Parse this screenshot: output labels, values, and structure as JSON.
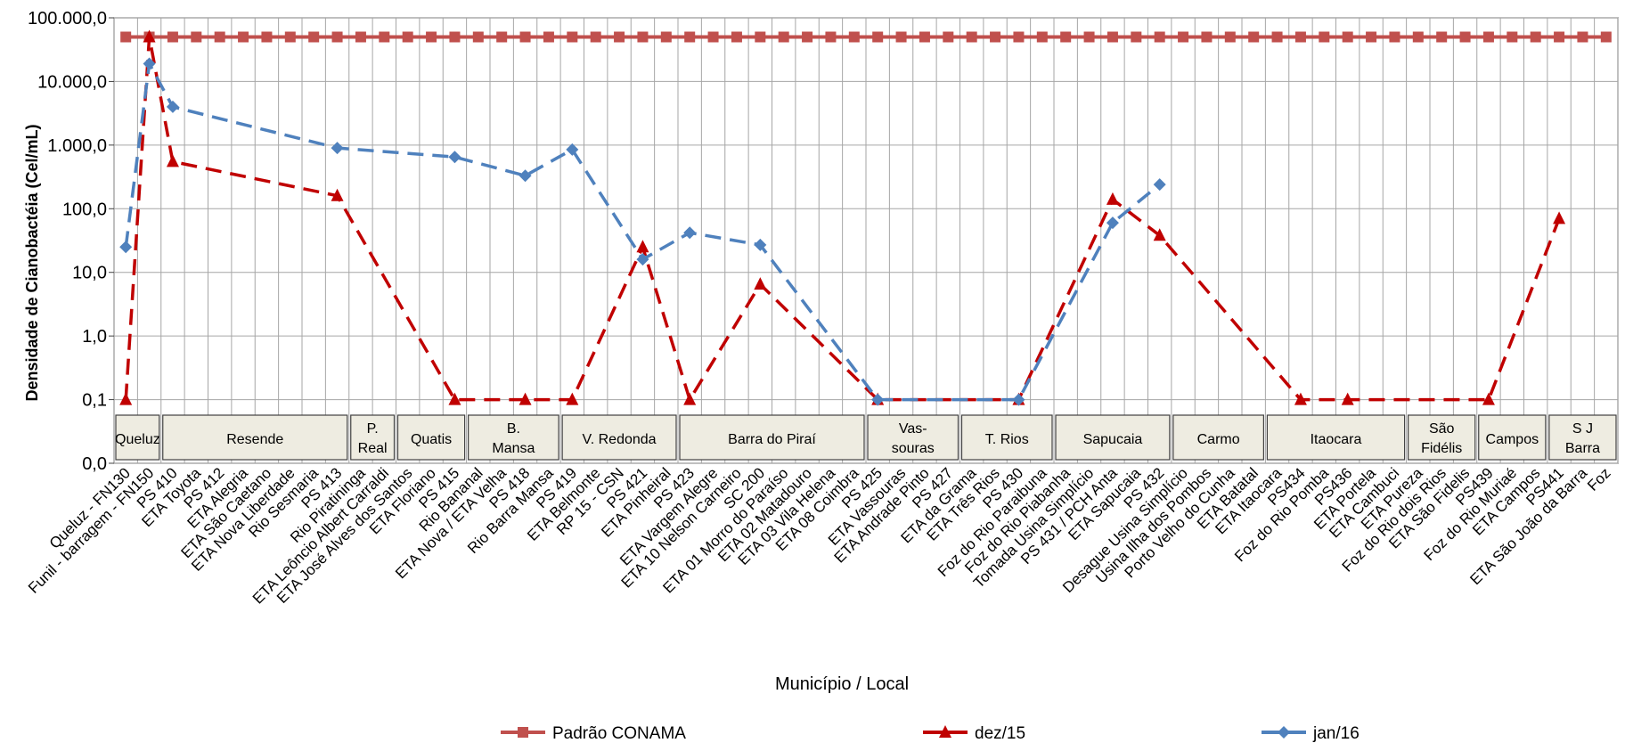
{
  "chart_data": {
    "type": "line",
    "title": "",
    "xlabel": "Município / Local",
    "ylabel": "Densidade de Cianobactéia (Cel/mL)",
    "yscale": "log",
    "ylim": [
      0.01,
      100000
    ],
    "grid": true,
    "legend_position": "bottom",
    "colors": {
      "conama": "#c0504d",
      "dez15": "#c00000",
      "jan16": "#4f81bd",
      "grid": "#a6a6a6",
      "band_fill": "#eeece1"
    },
    "y_ticks": [
      {
        "value": 0.01,
        "label": "0,0"
      },
      {
        "value": 0.1,
        "label": "0,1"
      },
      {
        "value": 1,
        "label": "1,0"
      },
      {
        "value": 10,
        "label": "10,0"
      },
      {
        "value": 100,
        "label": "100,0"
      },
      {
        "value": 1000,
        "label": "1.000,0"
      },
      {
        "value": 10000,
        "label": "10.000,0"
      },
      {
        "value": 100000,
        "label": "100.000,0"
      }
    ],
    "categories": [
      "Queluz - FN130",
      "Funil - barragem - FN150",
      "PS 410",
      "ETA Toyota",
      "PS 412",
      "ETA Alegria",
      "ETA São Caetano",
      "ETA Nova Liberdade",
      "Rio Sesmaria",
      "PS 413",
      "Rio Piratininga",
      "ETA Leôncio Albert Carraldi",
      "ETA José Alves dos Santos",
      "ETA Floriano",
      "PS 415",
      "Rio Bananal",
      "ETA Nova / ETA Velha",
      "PS 418",
      "Rio Barra Mansa",
      "PS 419",
      "ETA Belmonte",
      "RP 15 - CSN",
      "PS 421",
      "ETA Pinheiral",
      "PS 423",
      "ETA Vargem Alegre",
      "ETA 10 Nelson Carneiro",
      "SC 200",
      "ETA 01 Morro do Paraíso",
      "ETA 02 Matadouro",
      "ETA 03 Vila Helena",
      "ETA 08 Coimbra",
      "PS 425",
      "ETA Vassouras",
      "ETA Andrade Pinto",
      "PS 427",
      "ETA da Grama",
      "ETA Três Rios",
      "PS 430",
      "Foz do Rio Paraibuna",
      "Foz do Rio Piabanha",
      "Tomada Usina Simplício",
      "PS 431 / PCH Anta",
      "ETA Sapucaia",
      "PS 432",
      "Desague Usina Simplício",
      "Usina Ilha dos Pombos",
      "Porto Velho do Cunha",
      "ETA Batatal",
      "ETA Itaocara",
      "PS434",
      "Foz do Rio Pomba",
      "PS436",
      "ETA Portela",
      "ETA Cambuci",
      "ETA Pureza",
      "Foz do Rio dois Rios",
      "ETA São Fidelis",
      "PS439",
      "Foz do Rio Muriaé",
      "ETA Campos",
      "PS441",
      "ETA São João da Barra",
      "Foz"
    ],
    "series": [
      {
        "name": "Padrão CONAMA",
        "marker": "square",
        "values": [
          50000,
          50000,
          50000,
          50000,
          50000,
          50000,
          50000,
          50000,
          50000,
          50000,
          50000,
          50000,
          50000,
          50000,
          50000,
          50000,
          50000,
          50000,
          50000,
          50000,
          50000,
          50000,
          50000,
          50000,
          50000,
          50000,
          50000,
          50000,
          50000,
          50000,
          50000,
          50000,
          50000,
          50000,
          50000,
          50000,
          50000,
          50000,
          50000,
          50000,
          50000,
          50000,
          50000,
          50000,
          50000,
          50000,
          50000,
          50000,
          50000,
          50000,
          50000,
          50000,
          50000,
          50000,
          50000,
          50000,
          50000,
          50000,
          50000,
          50000,
          50000,
          50000,
          50000,
          50000
        ]
      },
      {
        "name": "dez/15",
        "marker": "triangle",
        "values": [
          0.1,
          50000,
          550,
          null,
          null,
          null,
          null,
          null,
          null,
          160,
          null,
          null,
          null,
          null,
          0.1,
          null,
          null,
          0.1,
          null,
          0.1,
          null,
          null,
          25,
          null,
          0.1,
          null,
          null,
          6.5,
          null,
          null,
          null,
          null,
          0.1,
          null,
          null,
          null,
          null,
          null,
          0.1,
          null,
          null,
          null,
          140,
          null,
          38,
          null,
          null,
          null,
          null,
          null,
          0.1,
          null,
          0.1,
          null,
          null,
          null,
          null,
          null,
          0.1,
          null,
          null,
          70,
          null,
          null
        ]
      },
      {
        "name": "jan16",
        "marker": "diamond",
        "values": [
          25,
          19000,
          4000,
          null,
          null,
          null,
          null,
          null,
          null,
          900,
          null,
          null,
          null,
          null,
          650,
          null,
          null,
          330,
          null,
          850,
          null,
          null,
          16,
          null,
          42,
          null,
          null,
          27,
          null,
          null,
          null,
          null,
          0.1,
          null,
          null,
          null,
          null,
          null,
          0.1,
          null,
          null,
          null,
          60,
          null,
          240,
          null,
          null,
          null,
          null,
          null,
          null,
          null,
          null,
          null,
          null,
          null,
          null,
          null,
          null,
          null,
          null,
          null,
          null,
          null
        ]
      }
    ],
    "legend": [
      {
        "label": "Padrão CONAMA",
        "series": 0
      },
      {
        "label": "dez/15",
        "series": 1
      },
      {
        "label": "jan/16",
        "series": 2
      }
    ],
    "regions": [
      {
        "lines": [
          "Queluz"
        ],
        "from": 0,
        "to": 1
      },
      {
        "lines": [
          "Resende"
        ],
        "from": 2,
        "to": 9
      },
      {
        "lines": [
          "P.",
          "Real"
        ],
        "from": 10,
        "to": 11
      },
      {
        "lines": [
          "Quatis"
        ],
        "from": 12,
        "to": 14
      },
      {
        "lines": [
          "B.",
          "Mansa"
        ],
        "from": 15,
        "to": 18
      },
      {
        "lines": [
          "V. Redonda"
        ],
        "from": 19,
        "to": 23
      },
      {
        "lines": [
          "Barra do Piraí"
        ],
        "from": 24,
        "to": 31
      },
      {
        "lines": [
          "Vas-",
          "souras"
        ],
        "from": 32,
        "to": 35
      },
      {
        "lines": [
          "T. Rios"
        ],
        "from": 36,
        "to": 39
      },
      {
        "lines": [
          "Sapucaia"
        ],
        "from": 40,
        "to": 44
      },
      {
        "lines": [
          "Carmo"
        ],
        "from": 45,
        "to": 48
      },
      {
        "lines": [
          "Itaocara"
        ],
        "from": 49,
        "to": 54
      },
      {
        "lines": [
          "São",
          "Fidélis"
        ],
        "from": 55,
        "to": 57
      },
      {
        "lines": [
          "Campos"
        ],
        "from": 58,
        "to": 60
      },
      {
        "lines": [
          "S J",
          "Barra"
        ],
        "from": 61,
        "to": 63
      }
    ]
  }
}
